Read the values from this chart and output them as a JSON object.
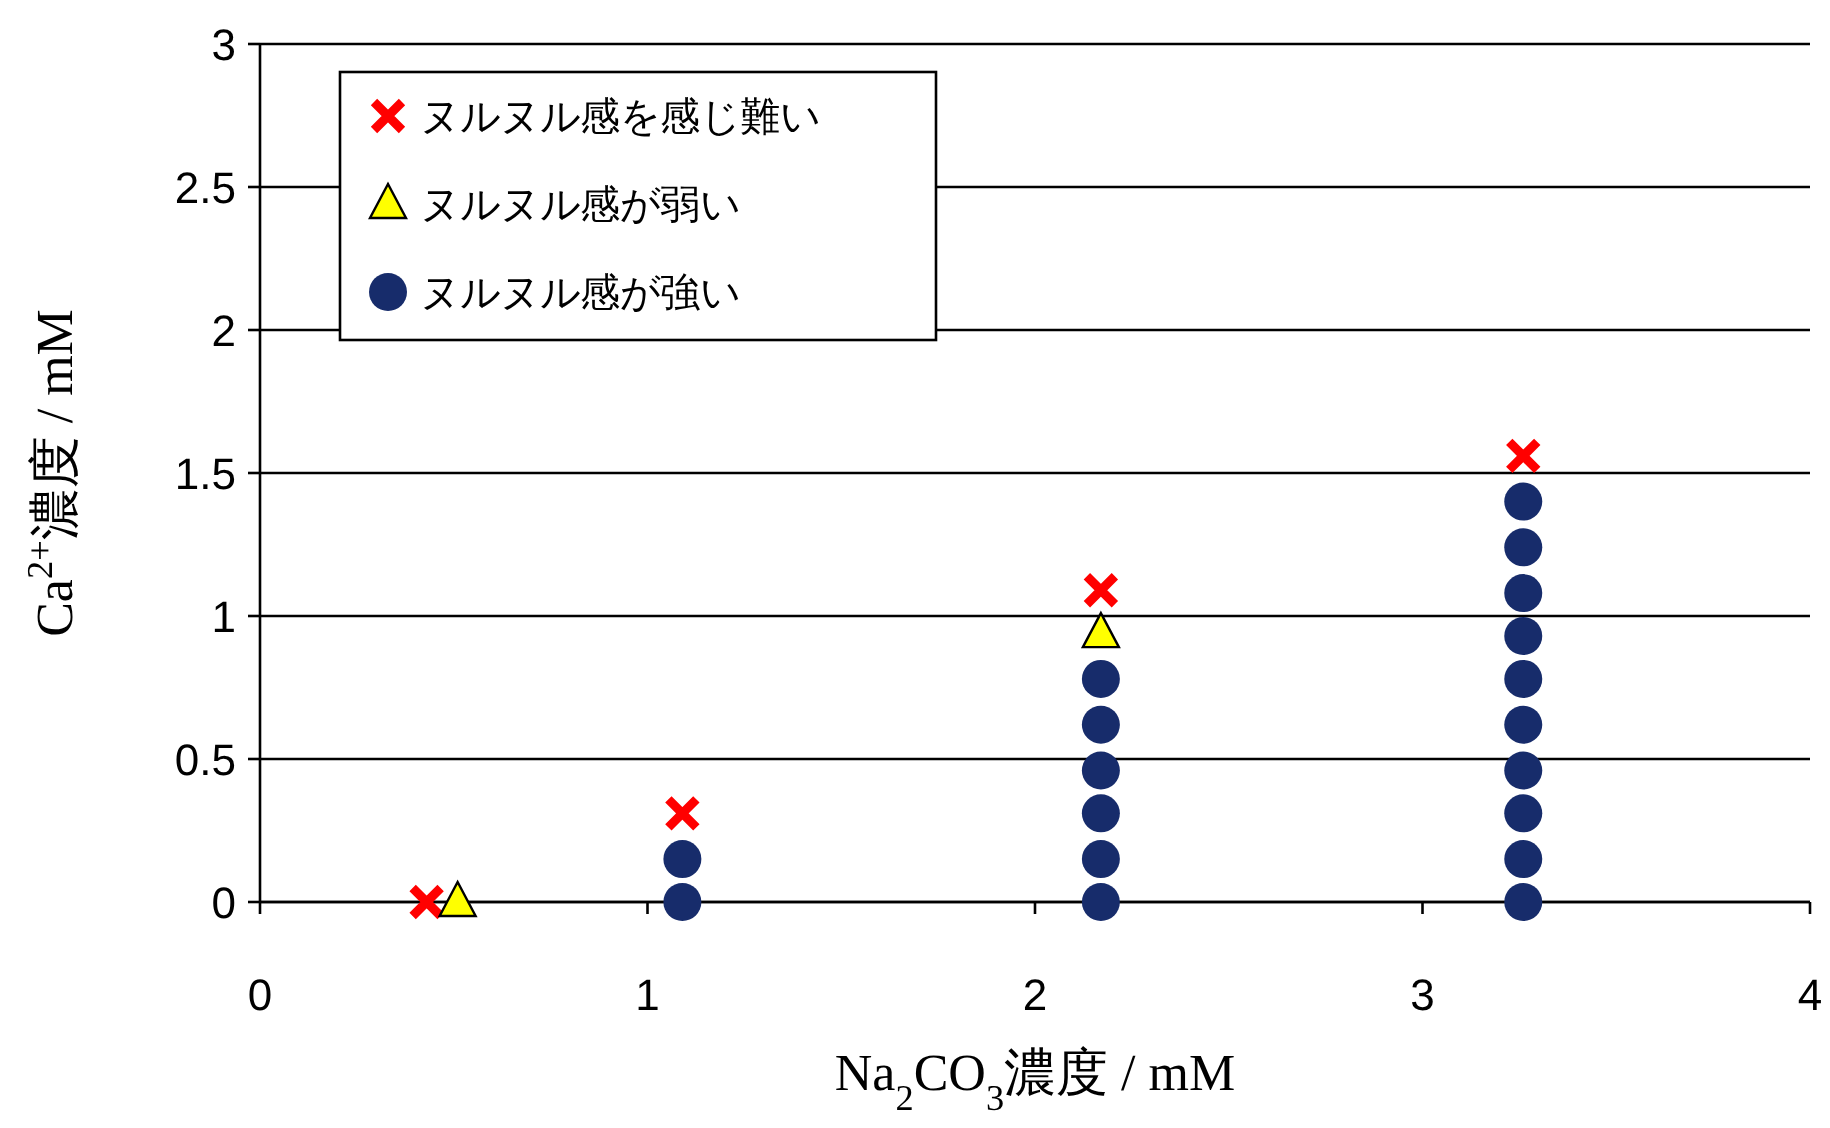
{
  "chart_data": {
    "type": "scatter",
    "xlabel": "Na$_{2}$CO$_{3}$濃度 / mM",
    "ylabel": "Ca$^{2+}$濃度 / mM",
    "xlim": [
      0,
      4
    ],
    "ylim": [
      0,
      3
    ],
    "xticks": [
      0,
      1,
      2,
      3,
      4
    ],
    "yticks": [
      0,
      0.5,
      1,
      1.5,
      2,
      2.5,
      3
    ],
    "grid": "y",
    "legend": "top left",
    "series": [
      {
        "name": "ヌルヌル感を感じ難い",
        "color": "#ff0000",
        "marker": "cross",
        "x": [
          0.43,
          1.09,
          2.17,
          3.26
        ],
        "values": [
          0,
          0.31,
          1.09,
          1.56
        ]
      },
      {
        "name": "ヌルヌル感が弱い",
        "color": "#ffff00",
        "marker": "triangle",
        "x": [
          0.51,
          2.17
        ],
        "values": [
          0,
          0.94
        ]
      },
      {
        "name": "ヌルヌル感が強い",
        "color": "#172c6b",
        "marker": "circle",
        "x": [
          1.09,
          1.09,
          2.17,
          2.17,
          2.17,
          2.17,
          2.17,
          2.17,
          3.26,
          3.26,
          3.26,
          3.26,
          3.26,
          3.26,
          3.26,
          3.26,
          3.26,
          3.26
        ],
        "values": [
          0,
          0.15,
          0,
          0.15,
          0.31,
          0.46,
          0.62,
          0.78,
          0,
          0.15,
          0.31,
          0.46,
          0.62,
          0.78,
          0.93,
          1.08,
          1.24,
          1.4
        ]
      }
    ]
  }
}
